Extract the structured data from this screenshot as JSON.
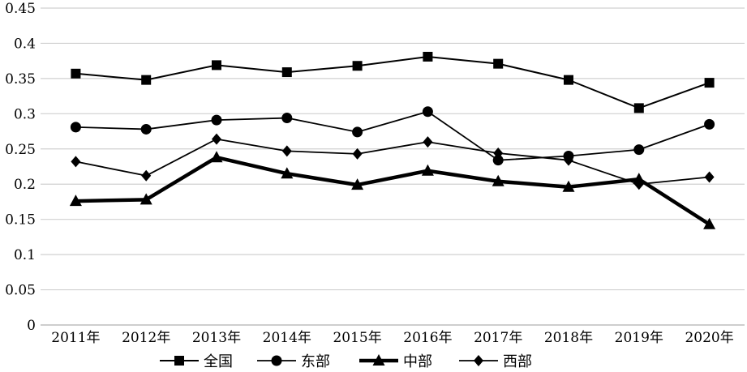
{
  "chart_data": {
    "type": "line",
    "title": "",
    "xlabel": "",
    "ylabel": "",
    "categories": [
      "2011年",
      "2012年",
      "2013年",
      "2014年",
      "2015年",
      "2016年",
      "2017年",
      "2018年",
      "2019年",
      "2020年"
    ],
    "ylim": [
      0,
      0.45
    ],
    "yticks": [
      "0",
      "0.05",
      "0.1",
      "0.15",
      "0.2",
      "0.25",
      "0.3",
      "0.35",
      "0.4",
      "0.45"
    ],
    "grid": true,
    "legend_position": "bottom",
    "series": [
      {
        "name": "全国",
        "marker": "square",
        "color": "#000000",
        "values": [
          0.357,
          0.348,
          0.369,
          0.359,
          0.368,
          0.381,
          0.371,
          0.348,
          0.308,
          0.344
        ]
      },
      {
        "name": "东部",
        "marker": "circle",
        "color": "#000000",
        "values": [
          0.281,
          0.278,
          0.291,
          0.294,
          0.274,
          0.303,
          0.234,
          0.24,
          0.249,
          0.285
        ]
      },
      {
        "name": "中部",
        "marker": "triangle",
        "color": "#000000",
        "values": [
          0.176,
          0.178,
          0.238,
          0.215,
          0.199,
          0.219,
          0.204,
          0.196,
          0.207,
          0.143
        ]
      },
      {
        "name": "西部",
        "marker": "diamond",
        "color": "#000000",
        "values": [
          0.232,
          0.212,
          0.264,
          0.247,
          0.243,
          0.26,
          0.244,
          0.234,
          0.2,
          0.21
        ]
      }
    ]
  }
}
